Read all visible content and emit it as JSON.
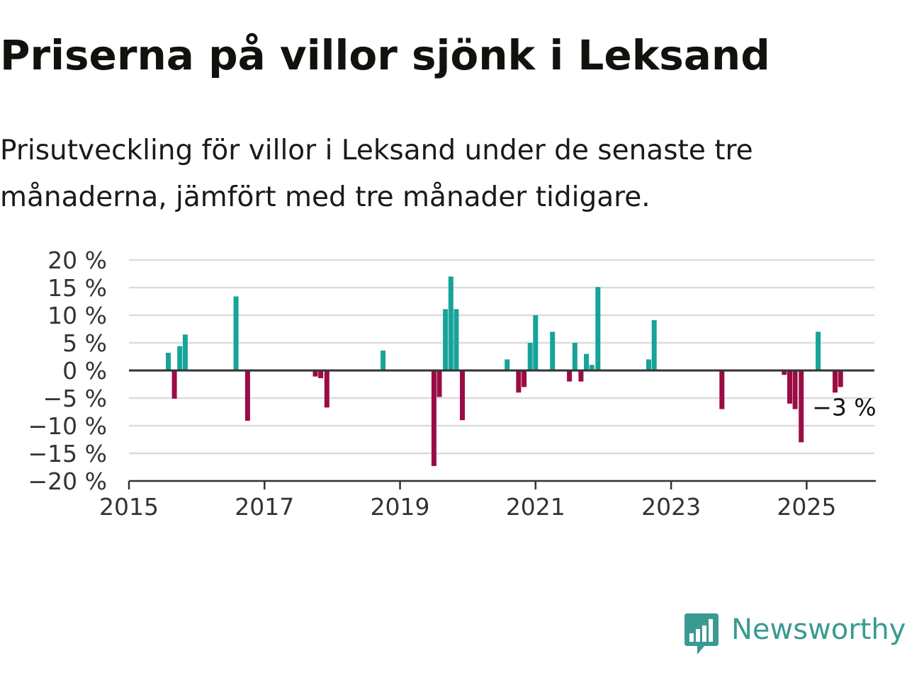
{
  "title": "Priserna på villor sjönk i Leksand",
  "subtitle": "Prisutveckling för villor i Leksand under de senaste tre månaderna, jämfört med tre månader tidigare.",
  "brand": {
    "name": "Newsworthy",
    "color": "#3a9a92",
    "icon": "bar-chart-speech-bubble-icon"
  },
  "colors": {
    "positive": "#17a39a",
    "negative": "#9b0c45",
    "gridline": "#dcdcdc",
    "axis": "#333333"
  },
  "chart_data": {
    "type": "bar",
    "ylim": [
      -20,
      20
    ],
    "xlim": [
      2015.0,
      2026.0
    ],
    "y_ticks": [
      20,
      15,
      10,
      5,
      0,
      -5,
      -10,
      -15,
      -20
    ],
    "y_tick_labels": [
      "20 %",
      "15 %",
      "10 %",
      "5 %",
      "0 %",
      "−5 %",
      "−10 %",
      "−15 %",
      "−20 %"
    ],
    "x_ticks": [
      2015,
      2017,
      2019,
      2021,
      2023,
      2025
    ],
    "x_tick_labels": [
      "2015",
      "2017",
      "2019",
      "2021",
      "2023",
      "2025"
    ],
    "grid": true,
    "series": [
      {
        "x": [
          2015.58,
          2015.67,
          2015.75,
          2015.83,
          2016.58,
          2016.75,
          2017.75,
          2017.83,
          2017.92,
          2018.75,
          2019.5,
          2019.58,
          2019.67,
          2019.75,
          2019.83,
          2019.92,
          2020.58,
          2020.75,
          2020.83,
          2020.92,
          2021.0,
          2021.25,
          2021.5,
          2021.58,
          2021.67,
          2021.75,
          2021.83,
          2021.92,
          2022.67,
          2022.75,
          2023.75,
          2024.67,
          2024.75,
          2024.83,
          2024.92,
          2025.17,
          2025.42,
          2025.5
        ],
        "values": [
          3.2,
          -5.1,
          4.4,
          6.5,
          13.4,
          -9.1,
          -1.1,
          -1.4,
          -6.7,
          3.6,
          -17.3,
          -4.8,
          11.1,
          17.0,
          11.1,
          -9.0,
          2.0,
          -4.0,
          -3.0,
          5.0,
          10.0,
          7.0,
          -2.0,
          5.0,
          -2.0,
          3.0,
          1.0,
          15.1,
          2.0,
          9.1,
          -7.0,
          -0.8,
          -6.0,
          -7.0,
          -13.0,
          7.0,
          -4.0,
          -3.0
        ]
      }
    ],
    "annotation": {
      "x": 2025.5,
      "y": -3.0,
      "label": "−3 %"
    }
  }
}
